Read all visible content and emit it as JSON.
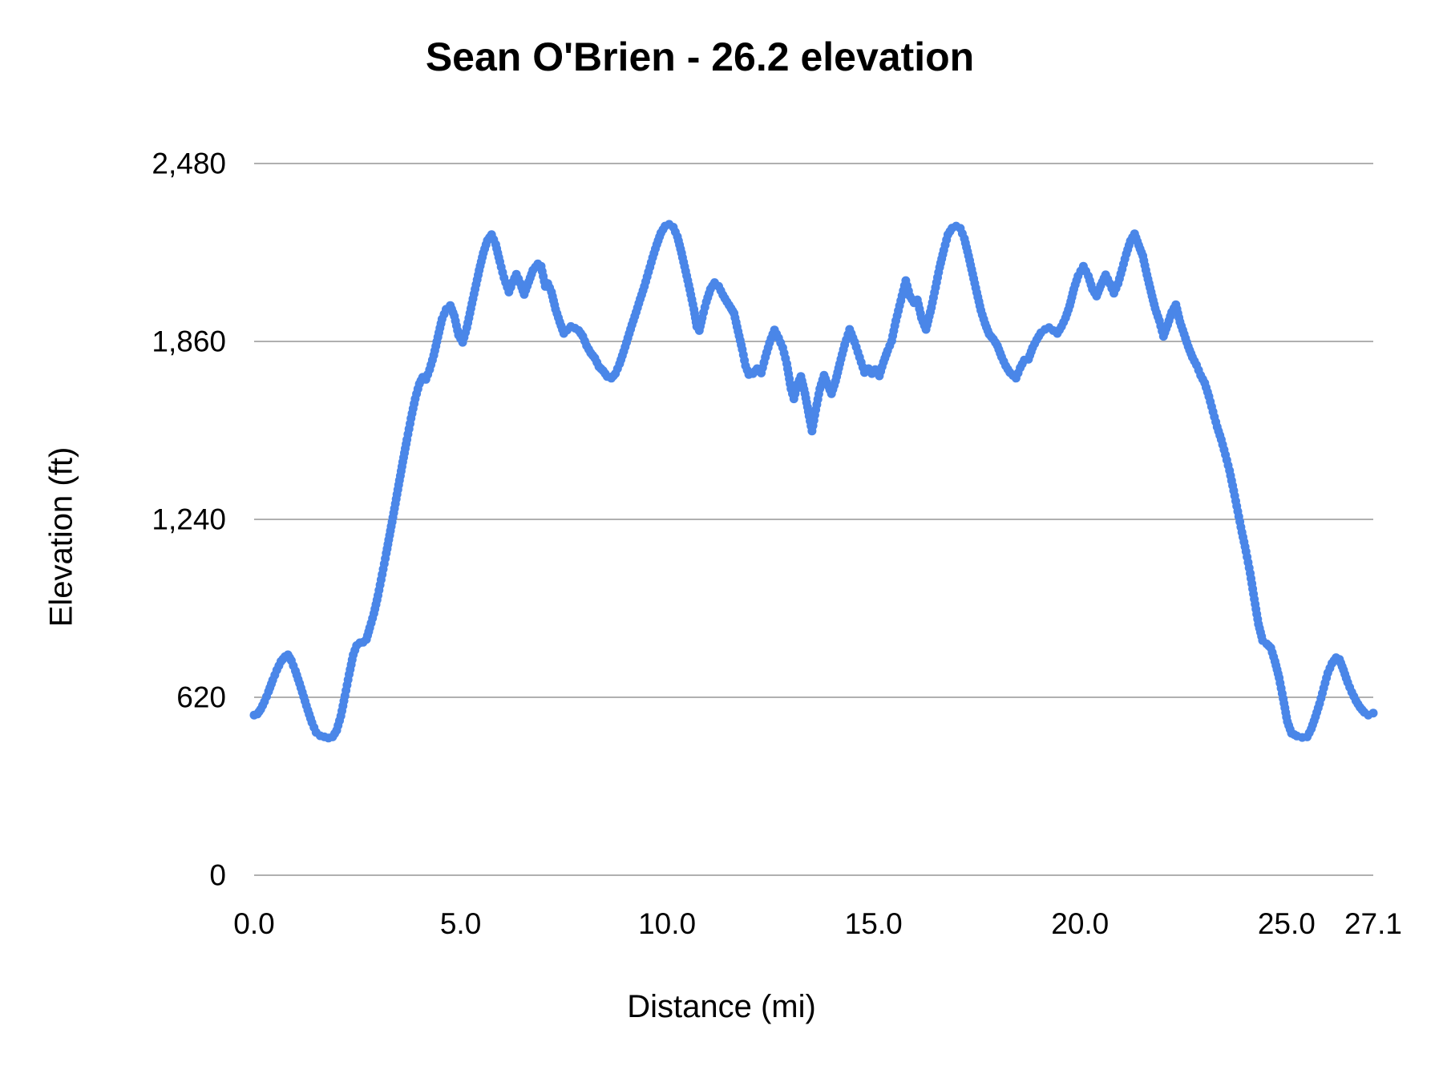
{
  "chart_data": {
    "type": "line",
    "title": "Sean O'Brien - 26.2 elevation",
    "xlabel": "Distance (mi)",
    "ylabel": "Elevation (ft)",
    "xlim": [
      0,
      27.1
    ],
    "ylim": [
      0,
      2480
    ],
    "x_ticks": [
      0,
      5,
      10,
      15,
      20,
      25,
      27.1
    ],
    "x_tick_labels": [
      "0.0",
      "5.0",
      "10.0",
      "15.0",
      "20.0",
      "25.0",
      "27.1"
    ],
    "y_ticks": [
      0,
      620,
      1240,
      1860,
      2480
    ],
    "y_tick_labels": [
      "0",
      "620",
      "1,240",
      "1,860",
      "2,480"
    ],
    "grid": "horizontal",
    "legend": "none",
    "line_color": "#4a86e8",
    "gridline_color": "#b0b0b0",
    "text_color": "#000000",
    "marker": "circle",
    "series": [
      {
        "name": "elevation",
        "points": [
          [
            0.0,
            558
          ],
          [
            0.08,
            562
          ],
          [
            0.16,
            578
          ],
          [
            0.25,
            605
          ],
          [
            0.35,
            640
          ],
          [
            0.45,
            680
          ],
          [
            0.55,
            715
          ],
          [
            0.65,
            745
          ],
          [
            0.75,
            762
          ],
          [
            0.82,
            768
          ],
          [
            0.9,
            748
          ],
          [
            1.0,
            712
          ],
          [
            1.1,
            668
          ],
          [
            1.2,
            622
          ],
          [
            1.3,
            575
          ],
          [
            1.4,
            532
          ],
          [
            1.5,
            498
          ],
          [
            1.6,
            486
          ],
          [
            1.7,
            482
          ],
          [
            1.8,
            478
          ],
          [
            1.9,
            482
          ],
          [
            2.0,
            505
          ],
          [
            2.1,
            555
          ],
          [
            2.2,
            625
          ],
          [
            2.3,
            700
          ],
          [
            2.4,
            768
          ],
          [
            2.48,
            800
          ],
          [
            2.56,
            810
          ],
          [
            2.64,
            812
          ],
          [
            2.72,
            822
          ],
          [
            2.8,
            862
          ],
          [
            2.9,
            912
          ],
          [
            3.0,
            975
          ],
          [
            3.1,
            1048
          ],
          [
            3.2,
            1122
          ],
          [
            3.3,
            1200
          ],
          [
            3.4,
            1278
          ],
          [
            3.5,
            1360
          ],
          [
            3.6,
            1440
          ],
          [
            3.7,
            1518
          ],
          [
            3.8,
            1592
          ],
          [
            3.9,
            1660
          ],
          [
            4.0,
            1712
          ],
          [
            4.08,
            1735
          ],
          [
            4.16,
            1728
          ],
          [
            4.25,
            1762
          ],
          [
            4.35,
            1812
          ],
          [
            4.45,
            1875
          ],
          [
            4.55,
            1938
          ],
          [
            4.65,
            1972
          ],
          [
            4.75,
            1985
          ],
          [
            4.85,
            1948
          ],
          [
            4.95,
            1882
          ],
          [
            5.05,
            1857
          ],
          [
            5.15,
            1908
          ],
          [
            5.25,
            1975
          ],
          [
            5.35,
            2042
          ],
          [
            5.45,
            2108
          ],
          [
            5.55,
            2168
          ],
          [
            5.65,
            2212
          ],
          [
            5.75,
            2232
          ],
          [
            5.85,
            2198
          ],
          [
            5.95,
            2138
          ],
          [
            6.05,
            2082
          ],
          [
            6.17,
            2032
          ],
          [
            6.26,
            2066
          ],
          [
            6.35,
            2094
          ],
          [
            6.45,
            2062
          ],
          [
            6.54,
            2024
          ],
          [
            6.65,
            2068
          ],
          [
            6.75,
            2108
          ],
          [
            6.87,
            2130
          ],
          [
            6.95,
            2122
          ],
          [
            7.05,
            2052
          ],
          [
            7.11,
            2062
          ],
          [
            7.2,
            2032
          ],
          [
            7.3,
            1972
          ],
          [
            7.4,
            1928
          ],
          [
            7.5,
            1888
          ],
          [
            7.58,
            1900
          ],
          [
            7.67,
            1912
          ],
          [
            7.77,
            1906
          ],
          [
            7.86,
            1898
          ],
          [
            7.96,
            1878
          ],
          [
            8.05,
            1845
          ],
          [
            8.15,
            1820
          ],
          [
            8.25,
            1802
          ],
          [
            8.35,
            1772
          ],
          [
            8.45,
            1758
          ],
          [
            8.55,
            1738
          ],
          [
            8.65,
            1732
          ],
          [
            8.75,
            1748
          ],
          [
            8.85,
            1782
          ],
          [
            8.95,
            1825
          ],
          [
            9.05,
            1872
          ],
          [
            9.15,
            1918
          ],
          [
            9.25,
            1962
          ],
          [
            9.35,
            2008
          ],
          [
            9.45,
            2052
          ],
          [
            9.55,
            2102
          ],
          [
            9.65,
            2152
          ],
          [
            9.75,
            2198
          ],
          [
            9.85,
            2238
          ],
          [
            9.95,
            2262
          ],
          [
            10.05,
            2268
          ],
          [
            10.15,
            2258
          ],
          [
            10.25,
            2225
          ],
          [
            10.35,
            2168
          ],
          [
            10.45,
            2105
          ],
          [
            10.55,
            2040
          ],
          [
            10.65,
            1972
          ],
          [
            10.72,
            1912
          ],
          [
            10.78,
            1898
          ],
          [
            10.85,
            1942
          ],
          [
            10.95,
            1998
          ],
          [
            11.05,
            2042
          ],
          [
            11.15,
            2065
          ],
          [
            11.25,
            2052
          ],
          [
            11.35,
            2022
          ],
          [
            11.45,
            1998
          ],
          [
            11.55,
            1975
          ],
          [
            11.62,
            1958
          ],
          [
            11.72,
            1895
          ],
          [
            11.82,
            1832
          ],
          [
            11.9,
            1775
          ],
          [
            11.98,
            1745
          ],
          [
            12.08,
            1748
          ],
          [
            12.18,
            1765
          ],
          [
            12.28,
            1750
          ],
          [
            12.38,
            1805
          ],
          [
            12.48,
            1855
          ],
          [
            12.6,
            1900
          ],
          [
            12.7,
            1872
          ],
          [
            12.8,
            1838
          ],
          [
            12.9,
            1782
          ],
          [
            13.0,
            1695
          ],
          [
            13.07,
            1660
          ],
          [
            13.16,
            1712
          ],
          [
            13.24,
            1738
          ],
          [
            13.34,
            1678
          ],
          [
            13.44,
            1600
          ],
          [
            13.51,
            1548
          ],
          [
            13.6,
            1622
          ],
          [
            13.7,
            1695
          ],
          [
            13.8,
            1742
          ],
          [
            13.9,
            1705
          ],
          [
            13.98,
            1678
          ],
          [
            14.08,
            1722
          ],
          [
            14.18,
            1782
          ],
          [
            14.3,
            1848
          ],
          [
            14.42,
            1902
          ],
          [
            14.54,
            1858
          ],
          [
            14.66,
            1805
          ],
          [
            14.78,
            1752
          ],
          [
            14.88,
            1765
          ],
          [
            14.96,
            1748
          ],
          [
            15.04,
            1762
          ],
          [
            15.14,
            1740
          ],
          [
            15.24,
            1788
          ],
          [
            15.34,
            1828
          ],
          [
            15.44,
            1862
          ],
          [
            15.54,
            1932
          ],
          [
            15.66,
            2002
          ],
          [
            15.78,
            2072
          ],
          [
            15.88,
            2018
          ],
          [
            15.98,
            1995
          ],
          [
            16.06,
            2005
          ],
          [
            16.16,
            1942
          ],
          [
            16.27,
            1902
          ],
          [
            16.4,
            1978
          ],
          [
            16.5,
            2048
          ],
          [
            16.6,
            2118
          ],
          [
            16.7,
            2178
          ],
          [
            16.8,
            2232
          ],
          [
            16.9,
            2255
          ],
          [
            17.0,
            2262
          ],
          [
            17.1,
            2254
          ],
          [
            17.2,
            2218
          ],
          [
            17.3,
            2158
          ],
          [
            17.4,
            2095
          ],
          [
            17.5,
            2030
          ],
          [
            17.6,
            1968
          ],
          [
            17.7,
            1922
          ],
          [
            17.8,
            1885
          ],
          [
            17.9,
            1868
          ],
          [
            18.0,
            1845
          ],
          [
            18.1,
            1806
          ],
          [
            18.2,
            1775
          ],
          [
            18.3,
            1752
          ],
          [
            18.45,
            1732
          ],
          [
            18.55,
            1768
          ],
          [
            18.65,
            1795
          ],
          [
            18.75,
            1798
          ],
          [
            18.85,
            1838
          ],
          [
            18.95,
            1866
          ],
          [
            19.05,
            1890
          ],
          [
            19.15,
            1902
          ],
          [
            19.25,
            1908
          ],
          [
            19.35,
            1898
          ],
          [
            19.45,
            1888
          ],
          [
            19.55,
            1912
          ],
          [
            19.65,
            1942
          ],
          [
            19.75,
            1985
          ],
          [
            19.85,
            2042
          ],
          [
            19.95,
            2088
          ],
          [
            20.08,
            2122
          ],
          [
            20.2,
            2088
          ],
          [
            20.3,
            2042
          ],
          [
            20.4,
            2018
          ],
          [
            20.5,
            2055
          ],
          [
            20.62,
            2092
          ],
          [
            20.72,
            2062
          ],
          [
            20.82,
            2028
          ],
          [
            20.92,
            2062
          ],
          [
            21.02,
            2112
          ],
          [
            21.12,
            2165
          ],
          [
            21.22,
            2210
          ],
          [
            21.32,
            2235
          ],
          [
            21.42,
            2195
          ],
          [
            21.52,
            2158
          ],
          [
            21.62,
            2092
          ],
          [
            21.72,
            2032
          ],
          [
            21.82,
            1975
          ],
          [
            21.92,
            1932
          ],
          [
            22.02,
            1878
          ],
          [
            22.12,
            1918
          ],
          [
            22.22,
            1962
          ],
          [
            22.32,
            1988
          ],
          [
            22.42,
            1928
          ],
          [
            22.52,
            1885
          ],
          [
            22.62,
            1842
          ],
          [
            22.72,
            1805
          ],
          [
            22.82,
            1778
          ],
          [
            22.92,
            1742
          ],
          [
            23.02,
            1715
          ],
          [
            23.12,
            1668
          ],
          [
            23.22,
            1615
          ],
          [
            23.32,
            1562
          ],
          [
            23.42,
            1518
          ],
          [
            23.52,
            1465
          ],
          [
            23.62,
            1410
          ],
          [
            23.72,
            1340
          ],
          [
            23.82,
            1268
          ],
          [
            23.92,
            1195
          ],
          [
            24.02,
            1128
          ],
          [
            24.12,
            1052
          ],
          [
            24.22,
            962
          ],
          [
            24.32,
            875
          ],
          [
            24.42,
            818
          ],
          [
            24.52,
            806
          ],
          [
            24.62,
            792
          ],
          [
            24.72,
            745
          ],
          [
            24.82,
            688
          ],
          [
            24.92,
            615
          ],
          [
            25.02,
            535
          ],
          [
            25.12,
            495
          ],
          [
            25.25,
            485
          ],
          [
            25.38,
            480
          ],
          [
            25.5,
            482
          ],
          [
            25.6,
            510
          ],
          [
            25.7,
            552
          ],
          [
            25.8,
            598
          ],
          [
            25.9,
            652
          ],
          [
            26.0,
            705
          ],
          [
            26.1,
            738
          ],
          [
            26.2,
            758
          ],
          [
            26.28,
            752
          ],
          [
            26.38,
            715
          ],
          [
            26.48,
            672
          ],
          [
            26.58,
            638
          ],
          [
            26.68,
            608
          ],
          [
            26.78,
            585
          ],
          [
            26.88,
            568
          ],
          [
            26.98,
            558
          ],
          [
            27.1,
            565
          ]
        ]
      }
    ]
  }
}
